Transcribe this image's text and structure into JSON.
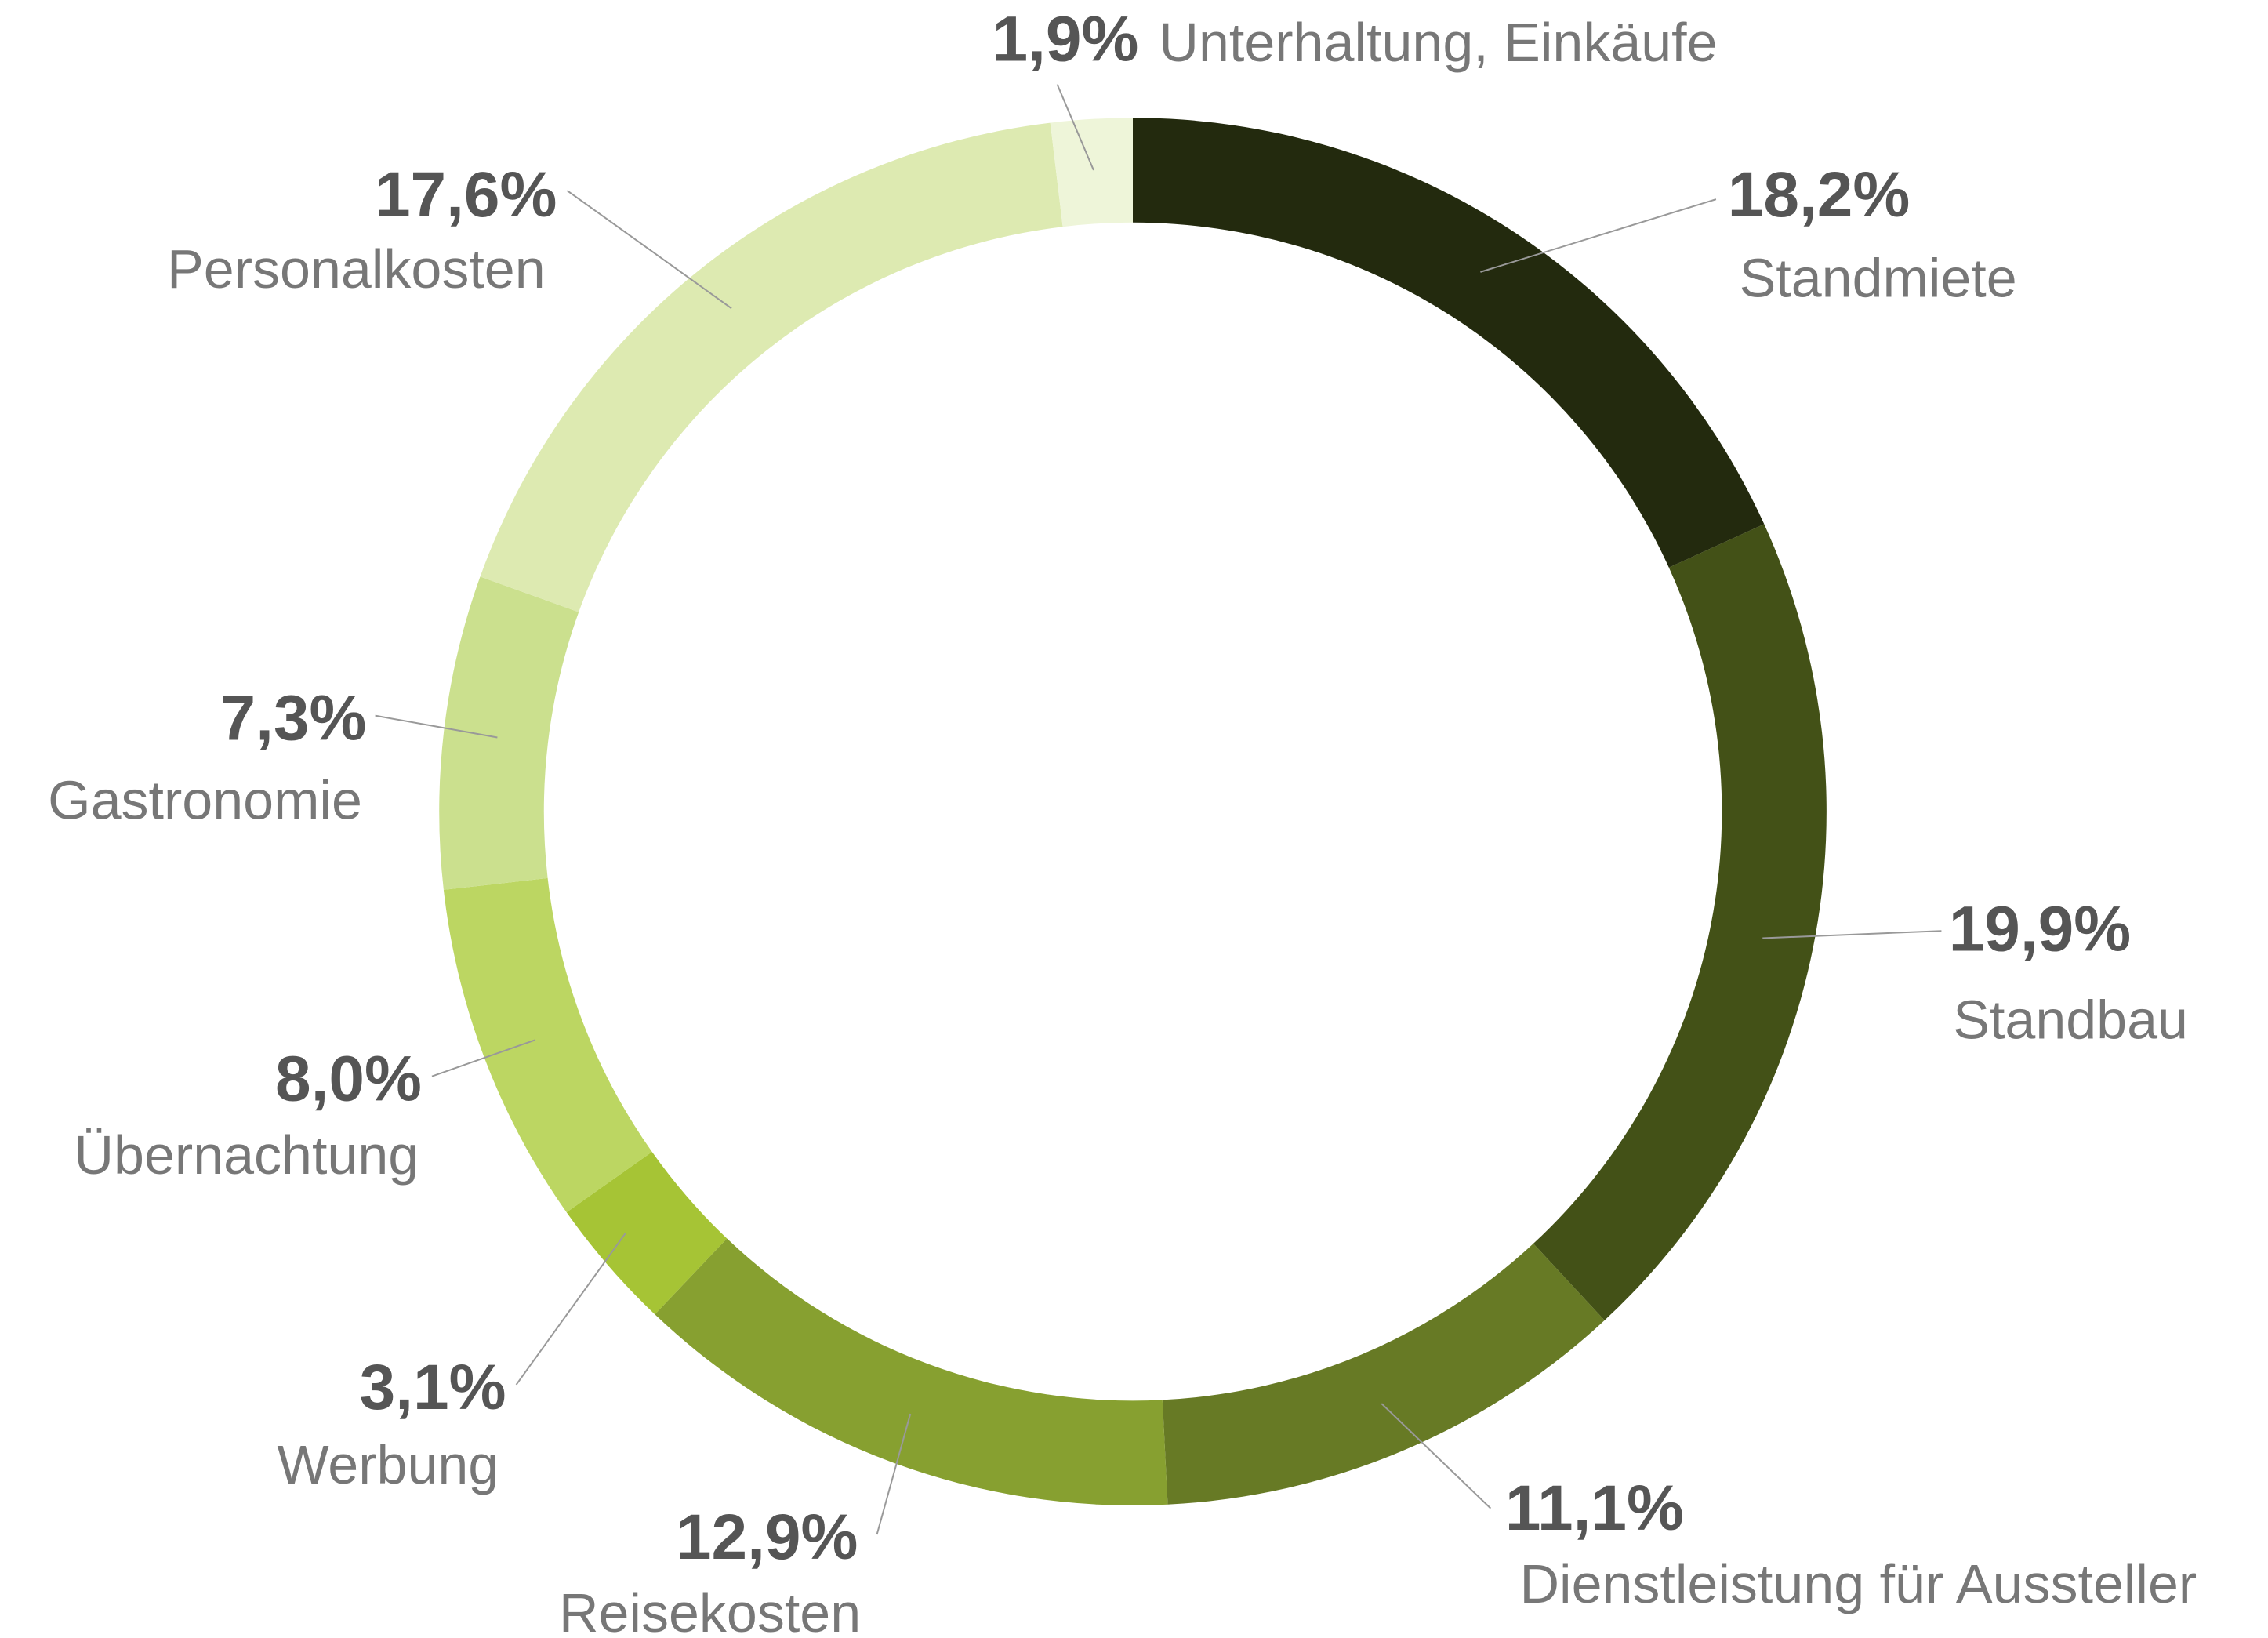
{
  "chart_data": {
    "type": "pie",
    "categories": [
      "Standmiete",
      "Standbau",
      "Dienstleistung für Aussteller",
      "Reisekosten",
      "Werbung",
      "Übernachtung",
      "Gastronomie",
      "Personalkosten",
      "Unterhaltung, Einkäufe"
    ],
    "values": [
      18.2,
      19.9,
      11.1,
      12.9,
      3.1,
      8.0,
      7.3,
      17.6,
      1.9
    ],
    "value_labels": [
      "18,2%",
      "19,9%",
      "11,1%",
      "12,9%",
      "3,1%",
      "8,0%",
      "7,3%",
      "17,6%",
      "1,9%"
    ],
    "colors": [
      "#232a0e",
      "#435117",
      "#677a25",
      "#87a030",
      "#a6c435",
      "#bcd662",
      "#cbe08e",
      "#ddeab1",
      "#eef5d9"
    ]
  }
}
